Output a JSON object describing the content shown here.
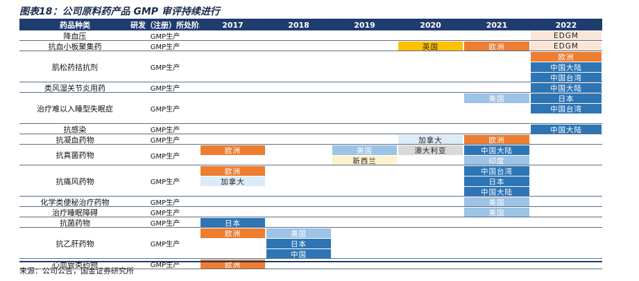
{
  "title": "图表18：公司原料药产品 GMP 审评持续进行",
  "source": "来源：公司公告，国金证券研究所",
  "headers": [
    "药品种类",
    "研发（注册）所处阶段",
    "2017",
    "2018",
    "2019",
    "2020",
    "2021",
    "2022"
  ],
  "colors": {
    "orange": "#ed7d31",
    "amber": "#ffc000",
    "blue": "#2e75b6",
    "light_blue": "#9dc3e6",
    "pale_blue": "#ddebf7",
    "pale_yellow": "#fff2cc",
    "grey": "#d9d9d9",
    "peach": "#fbe5d6",
    "header": "#1f3c6e"
  },
  "rows": [
    {
      "drug": "降血压",
      "stage": "GMP生产",
      "cells": [
        {
          "year": "2022",
          "label": "EDGM",
          "color": "peach"
        }
      ]
    },
    {
      "drug": "抗血小板聚集药",
      "stage": "GMP生产",
      "cells": [
        {
          "year": "2020",
          "label": "英国",
          "color": "amber"
        },
        {
          "year": "2021",
          "label": "欧洲",
          "color": "orange"
        },
        {
          "year": "2022",
          "label": "EDGM",
          "color": "peach"
        }
      ]
    },
    {
      "drug": "肌松药拮抗剂",
      "stage": "GMP生产",
      "cells": [
        {
          "year": "2022",
          "label": "欧洲",
          "color": "orange"
        },
        {
          "year": "2022",
          "label": "中国大陆",
          "color": "blue"
        },
        {
          "year": "2022",
          "label": "中国台湾",
          "color": "blue"
        }
      ]
    },
    {
      "drug": "类风湿关节炎用药",
      "stage": "GMP生产",
      "cells": [
        {
          "year": "2022",
          "label": "中国大陆",
          "color": "blue"
        }
      ]
    },
    {
      "drug": "治疗难以入睡型失眠症",
      "stage": "GMP生产",
      "cells": [
        {
          "year": "2021",
          "label": "美国",
          "color": "light_blue"
        },
        {
          "year": "2022",
          "label": "日本",
          "color": "blue"
        },
        {
          "year": "2022",
          "label": "中国台湾",
          "color": "blue"
        }
      ]
    },
    {
      "drug": "抗感染",
      "stage": "GMP生产",
      "cells": [
        {
          "year": "2022",
          "label": "中国大陆",
          "color": "blue"
        }
      ]
    },
    {
      "drug": "抗凝血药物",
      "stage": "GMP生产",
      "cells": [
        {
          "year": "2020",
          "label": "加拿大",
          "color": "pale_blue"
        },
        {
          "year": "2021",
          "label": "欧洲",
          "color": "orange"
        }
      ]
    },
    {
      "drug": "抗真菌药物",
      "stage": "GMP生产",
      "cells": [
        {
          "year": "2017",
          "label": "欧洲",
          "color": "orange"
        },
        {
          "year": "2019",
          "label": "美国",
          "color": "light_blue"
        },
        {
          "year": "2019",
          "label": "新西兰",
          "color": "pale_yellow"
        },
        {
          "year": "2020",
          "label": "澳大利亚",
          "color": "grey"
        },
        {
          "year": "2021",
          "label": "中国大陆",
          "color": "blue"
        },
        {
          "year": "2021",
          "label": "印度",
          "color": "light_blue"
        }
      ]
    },
    {
      "drug": "抗痛风药物",
      "stage": "GMP生产",
      "cells": [
        {
          "year": "2017",
          "label": "欧洲",
          "color": "orange"
        },
        {
          "year": "2017",
          "label": "加拿大",
          "color": "pale_blue"
        },
        {
          "year": "2021",
          "label": "中国台湾",
          "color": "blue"
        },
        {
          "year": "2021",
          "label": "日本",
          "color": "blue"
        },
        {
          "year": "2021",
          "label": "中国大陆",
          "color": "blue"
        }
      ]
    },
    {
      "drug": "化学类便秘治疗药物",
      "stage": "GMP生产",
      "cells": [
        {
          "year": "2021",
          "label": "美国",
          "color": "light_blue"
        }
      ]
    },
    {
      "drug": "治疗睡眠障碍",
      "stage": "GMP生产",
      "cells": [
        {
          "year": "2021",
          "label": "美国",
          "color": "light_blue"
        }
      ]
    },
    {
      "drug": "抗菌药物",
      "stage": "GMP生产",
      "cells": [
        {
          "year": "2017",
          "label": "日本",
          "color": "blue"
        }
      ]
    },
    {
      "drug": "抗乙肝药物",
      "stage": "GMP生产",
      "cells": [
        {
          "year": "2017",
          "label": "欧洲",
          "color": "orange"
        },
        {
          "year": "2018",
          "label": "美国",
          "color": "light_blue"
        },
        {
          "year": "2018",
          "label": "日本",
          "color": "blue"
        },
        {
          "year": "2018",
          "label": "中国",
          "color": "blue"
        }
      ]
    },
    {
      "drug": "心血管类药物",
      "stage": "GMP生产",
      "cells": [
        {
          "year": "2017",
          "label": "欧洲",
          "color": "orange"
        }
      ]
    }
  ]
}
